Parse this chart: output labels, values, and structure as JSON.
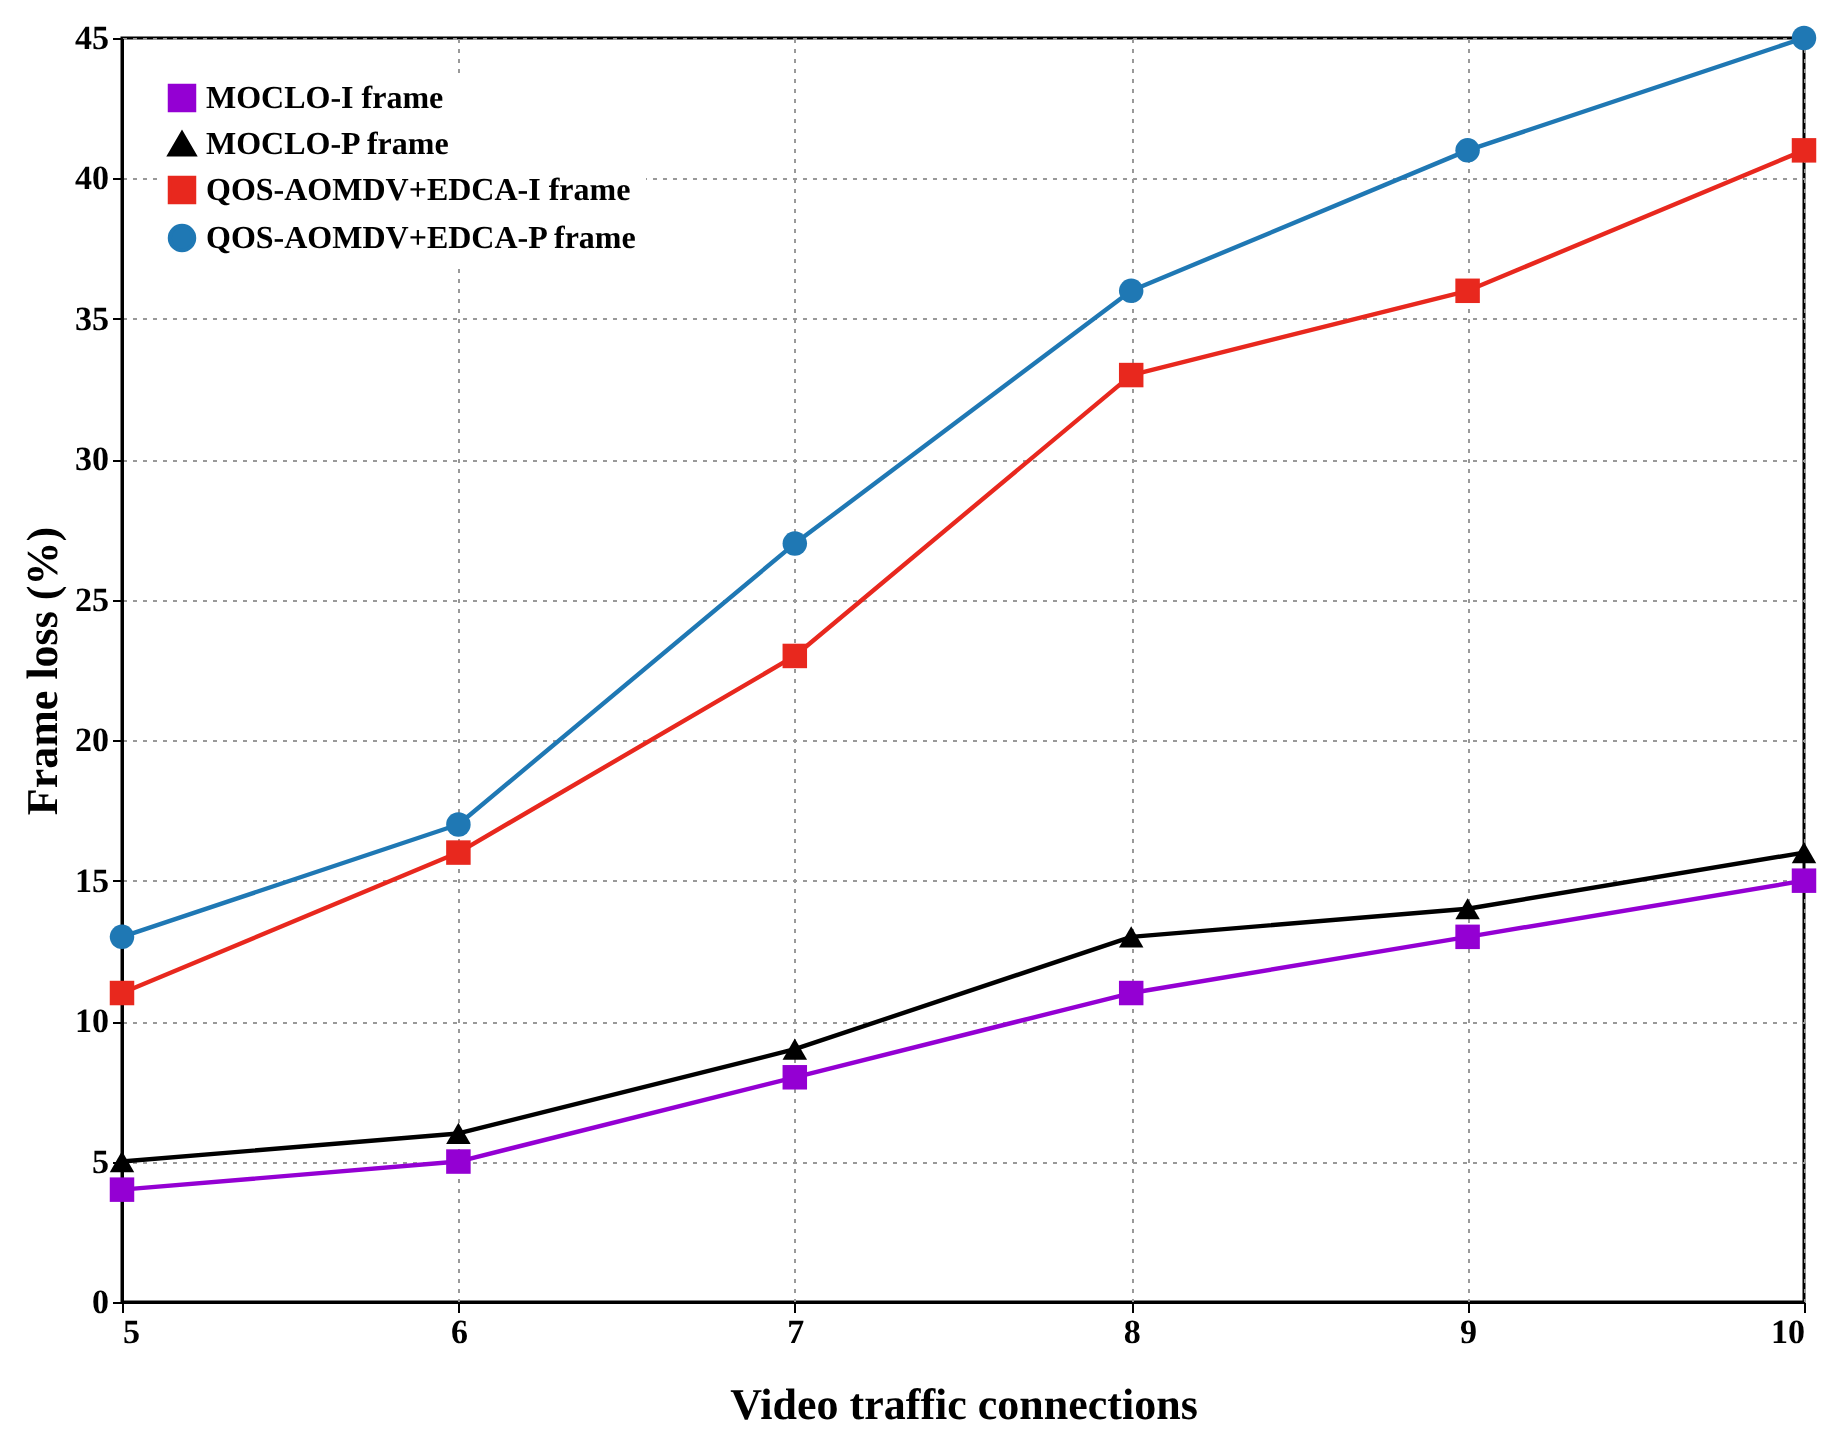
{
  "chart_data": {
    "type": "line",
    "xlabel": "Video traffic connections",
    "ylabel": "Frame loss (%)",
    "x": [
      5,
      6,
      7,
      8,
      9,
      10
    ],
    "series": [
      {
        "name": "MOCLO-I frame",
        "color": "#9400d3",
        "marker": "square",
        "values": [
          4,
          5,
          8,
          11,
          13,
          15
        ]
      },
      {
        "name": "MOCLO-P frame",
        "color": "#000000",
        "marker": "triangle",
        "values": [
          5,
          6,
          9,
          13,
          14,
          16
        ]
      },
      {
        "name": "QOS-AOMDV+EDCA-I frame",
        "color": "#e8281e",
        "marker": "square",
        "values": [
          11,
          16,
          23,
          33,
          36,
          41
        ]
      },
      {
        "name": "QOS-AOMDV+EDCA-P frame",
        "color": "#1f78b4",
        "marker": "circle",
        "values": [
          13,
          17,
          27,
          36,
          41,
          45
        ]
      }
    ],
    "xlim": [
      5,
      10
    ],
    "xticks": [
      5,
      6,
      7,
      8,
      9,
      10
    ],
    "ylim": [
      0,
      45
    ],
    "yticks": [
      0,
      5,
      10,
      15,
      20,
      25,
      30,
      35,
      40,
      45
    ],
    "grid": true,
    "legend": "top left",
    "line_style": "solid"
  }
}
